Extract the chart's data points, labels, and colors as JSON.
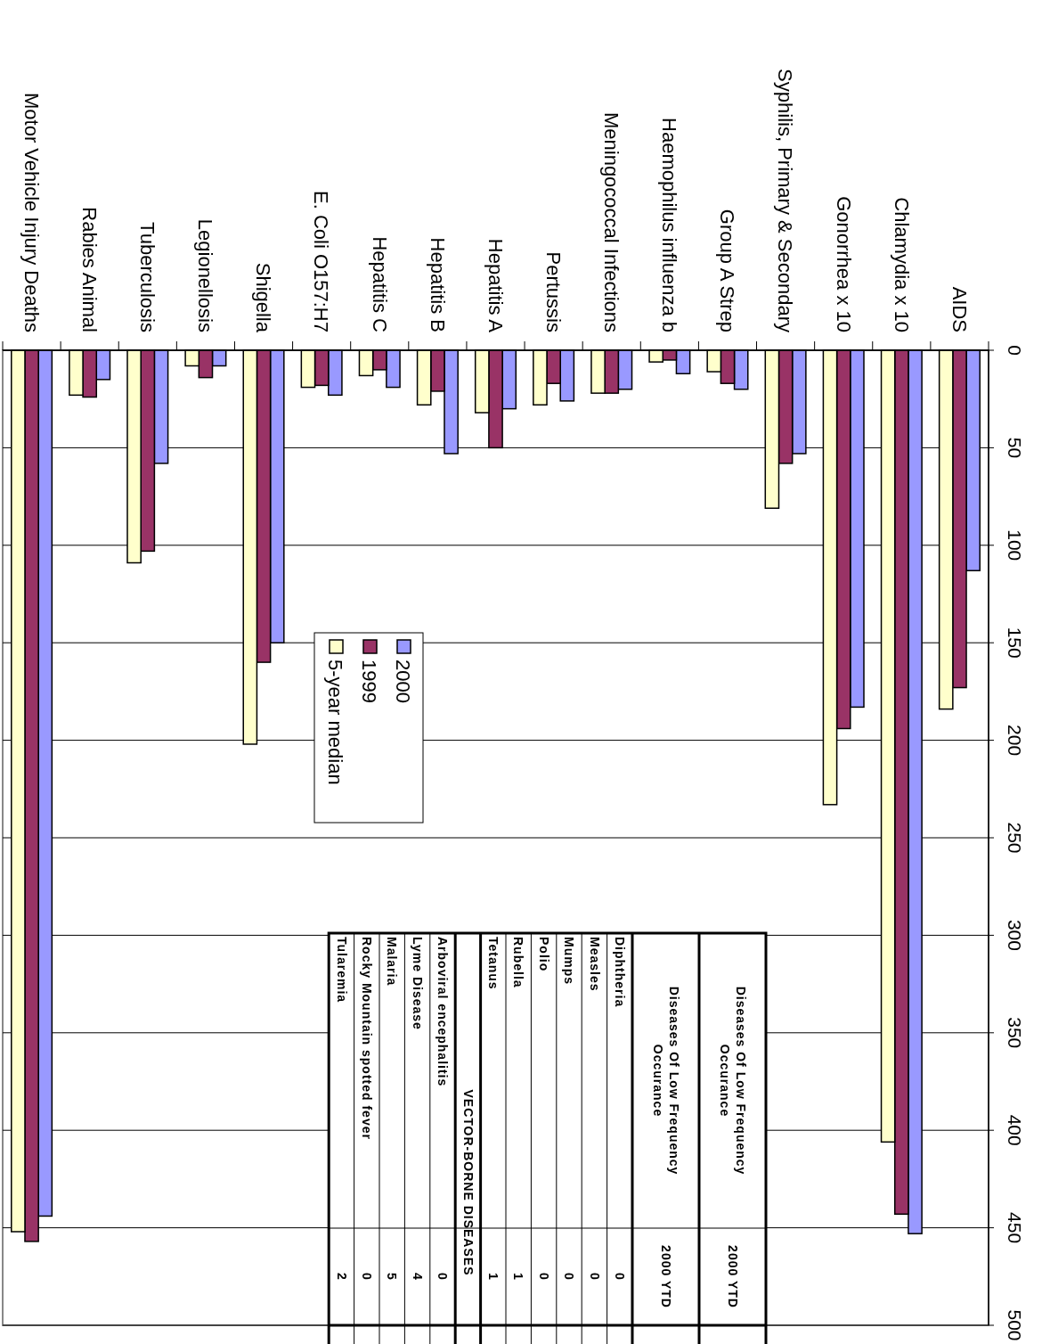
{
  "chart_data": [
    {
      "type": "bar",
      "categories": [
        "Motor Vehicle Injury Deaths",
        "Rabies Animal",
        "Tuberculosis",
        "Legionellosis",
        "Shigella",
        "E. Coli O157:H7",
        "Hepatitis C",
        "Hepatitis B",
        "Hepatitis A",
        "Pertussis",
        "Meningococcal  Infections",
        "Haemophilus influenza b",
        "Group A Strep",
        "Syphilis, Primary & Secondary",
        "Gonorrhea x 10",
        "Chlamydia x 10",
        "AIDS"
      ],
      "series": [
        {
          "name": "2000",
          "color": "#9999ff",
          "values": [
            444,
            15,
            58,
            8,
            150,
            23,
            19,
            53,
            30,
            26,
            20,
            12,
            20,
            53,
            183,
            453,
            113
          ]
        },
        {
          "name": "1999",
          "color": "#993366",
          "values": [
            457,
            24,
            103,
            14,
            160,
            18,
            10,
            21,
            50,
            17,
            22,
            5,
            17,
            58,
            194,
            443,
            173
          ]
        },
        {
          "name": "5-year median",
          "color": "#ffffcc",
          "values": [
            452,
            23,
            109,
            8,
            202,
            19,
            13,
            28,
            32,
            28,
            22,
            6,
            11,
            81,
            233,
            406,
            184
          ]
        }
      ],
      "ylim": [
        500,
        0
      ],
      "yticks": [
        0,
        50,
        100,
        150,
        200,
        250,
        300,
        350,
        400,
        450,
        500
      ],
      "grid": "y",
      "legend": "center"
    },
    {
      "type": "other",
      "data_labels": true,
      "annotations": [
        "Diseases Of Low Frequency Occurance",
        "2000 YTD",
        "Diseases Of Low Frequency Occurance",
        "2000 YTD"
      ],
      "categories": [
        "Diphtheria",
        "Measles",
        "Mumps",
        "Polio",
        "Rubella",
        "Tetanus",
        "VECTOR-BORNE DISEASES",
        "Arboviral encephalitis",
        "Lyme Disease",
        "Malaria",
        "Rocky Mountain spotted fever",
        "Tularemia"
      ],
      "values": [
        0,
        0,
        0,
        0,
        1,
        1,
        null,
        0,
        4,
        5,
        0,
        2
      ]
    }
  ]
}
